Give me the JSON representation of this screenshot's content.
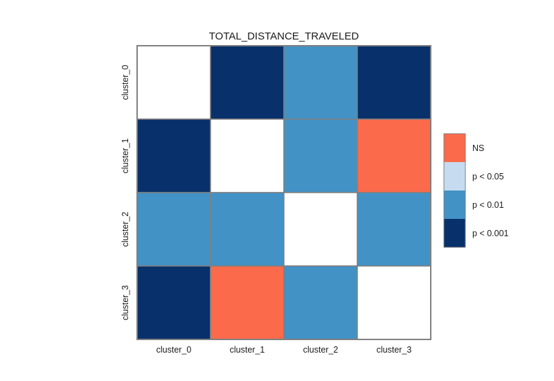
{
  "chart_data": {
    "type": "heatmap",
    "title": "TOTAL_DISTANCE_TRAVELED",
    "xlabel": "",
    "ylabel": "",
    "x_categories": [
      "cluster_0",
      "cluster_1",
      "cluster_2",
      "cluster_3"
    ],
    "y_categories": [
      "cluster_0",
      "cluster_1",
      "cluster_2",
      "cluster_3"
    ],
    "matrix": [
      [
        null,
        "p < 0.001",
        "p < 0.01",
        "p < 0.001"
      ],
      [
        "p < 0.001",
        null,
        "p < 0.01",
        "NS"
      ],
      [
        "p < 0.01",
        "p < 0.01",
        null,
        "p < 0.01"
      ],
      [
        "p < 0.001",
        "NS",
        "p < 0.01",
        null
      ]
    ],
    "legend": [
      {
        "label": "NS",
        "color": "#fb6a4a"
      },
      {
        "label": "p < 0.05",
        "color": "#c6dbef"
      },
      {
        "label": "p < 0.01",
        "color": "#4292c6"
      },
      {
        "label": "p < 0.001",
        "color": "#08306b"
      }
    ],
    "legend_placement": "right",
    "diagonal_color": "#ffffff",
    "grid_line_color": "#808080"
  }
}
